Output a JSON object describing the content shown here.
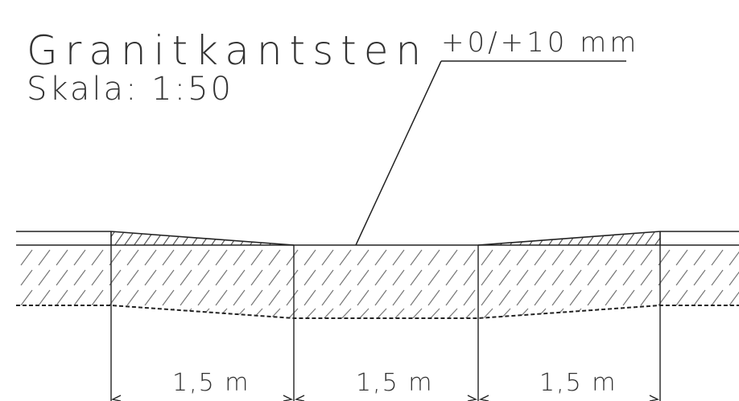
{
  "drawing": {
    "title": "Granitkantsten",
    "scale": "Skala: 1:50",
    "tolerance_label": "+0/+10 mm",
    "dimensions": [
      {
        "label": "1,5 m"
      },
      {
        "label": "1,5 m"
      },
      {
        "label": "1,5 m"
      }
    ]
  }
}
